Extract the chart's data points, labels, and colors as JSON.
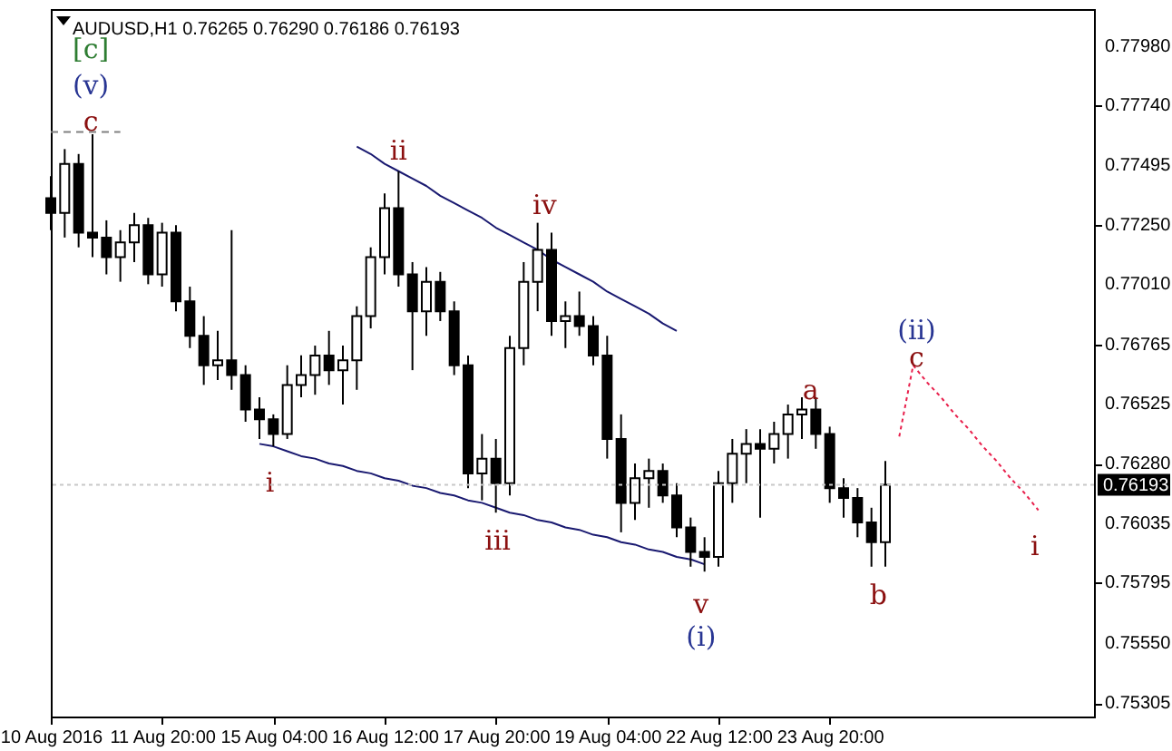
{
  "chart_data": {
    "type": "candlestick",
    "title": "AUDUSD,H1  0.76265 0.76290 0.76186 0.76193",
    "color": "#000000",
    "categories": [
      "10 Aug 2016",
      null,
      null,
      null,
      null,
      null,
      null,
      null,
      "11 Aug 20:00",
      null,
      null,
      null,
      null,
      null,
      null,
      null,
      "15 Aug 04:00",
      null,
      null,
      null,
      null,
      null,
      null,
      null,
      "16 Aug 12:00",
      null,
      null,
      null,
      null,
      null,
      null,
      null,
      "17 Aug 20:00",
      null,
      null,
      null,
      null,
      null,
      null,
      null,
      "19 Aug 04:00",
      null,
      null,
      null,
      null,
      null,
      null,
      null,
      "22 Aug 12:00",
      null,
      null,
      null,
      null,
      null,
      null,
      null,
      "23 Aug 20:00",
      null,
      null,
      null,
      null,
      null,
      null,
      null,
      null,
      null,
      null,
      null,
      null,
      null,
      null,
      null,
      null,
      null,
      null,
      null
    ],
    "ohlc": [
      [
        0.7736,
        0.7745,
        0.7723,
        0.773
      ],
      [
        0.773,
        0.7756,
        0.772,
        0.775
      ],
      [
        0.775,
        0.7754,
        0.7716,
        0.7722
      ],
      [
        0.7722,
        0.7762,
        0.7712,
        0.772
      ],
      [
        0.772,
        0.7727,
        0.7705,
        0.7712
      ],
      [
        0.7712,
        0.7723,
        0.7702,
        0.7718
      ],
      [
        0.7718,
        0.773,
        0.771,
        0.7725
      ],
      [
        0.7725,
        0.7728,
        0.7701,
        0.7705
      ],
      [
        0.7705,
        0.7726,
        0.77,
        0.7722
      ],
      [
        0.7722,
        0.7725,
        0.769,
        0.7694
      ],
      [
        0.7694,
        0.77,
        0.7675,
        0.768
      ],
      [
        0.768,
        0.7688,
        0.766,
        0.7668
      ],
      [
        0.7668,
        0.7682,
        0.7662,
        0.767
      ],
      [
        0.767,
        0.7723,
        0.7658,
        0.7664
      ],
      [
        0.7664,
        0.7668,
        0.7645,
        0.765
      ],
      [
        0.765,
        0.7655,
        0.7638,
        0.7646
      ],
      [
        0.7646,
        0.7648,
        0.7635,
        0.764
      ],
      [
        0.764,
        0.7668,
        0.7638,
        0.766
      ],
      [
        0.766,
        0.7672,
        0.7655,
        0.7664
      ],
      [
        0.7664,
        0.7676,
        0.7656,
        0.7672
      ],
      [
        0.7672,
        0.7682,
        0.766,
        0.7666
      ],
      [
        0.7666,
        0.7676,
        0.7652,
        0.767
      ],
      [
        0.767,
        0.7692,
        0.7658,
        0.7688
      ],
      [
        0.7688,
        0.7716,
        0.7683,
        0.7712
      ],
      [
        0.7712,
        0.7738,
        0.7705,
        0.7732
      ],
      [
        0.7732,
        0.7747,
        0.77,
        0.7705
      ],
      [
        0.7705,
        0.771,
        0.7666,
        0.769
      ],
      [
        0.769,
        0.7708,
        0.768,
        0.7702
      ],
      [
        0.7702,
        0.7706,
        0.7686,
        0.769
      ],
      [
        0.769,
        0.7694,
        0.7664,
        0.7668
      ],
      [
        0.7668,
        0.7672,
        0.7618,
        0.7624
      ],
      [
        0.7624,
        0.764,
        0.7613,
        0.763
      ],
      [
        0.763,
        0.7638,
        0.7608,
        0.762
      ],
      [
        0.762,
        0.768,
        0.7615,
        0.7675
      ],
      [
        0.7675,
        0.771,
        0.7668,
        0.7702
      ],
      [
        0.7702,
        0.7726,
        0.769,
        0.7715
      ],
      [
        0.7715,
        0.7722,
        0.768,
        0.7686
      ],
      [
        0.7686,
        0.7694,
        0.7675,
        0.7688
      ],
      [
        0.7688,
        0.7698,
        0.768,
        0.7684
      ],
      [
        0.7684,
        0.7688,
        0.7668,
        0.7672
      ],
      [
        0.7672,
        0.768,
        0.763,
        0.7638
      ],
      [
        0.7638,
        0.7648,
        0.76,
        0.7612
      ],
      [
        0.7612,
        0.7628,
        0.7605,
        0.7622
      ],
      [
        0.7622,
        0.763,
        0.761,
        0.7625
      ],
      [
        0.7625,
        0.7628,
        0.7612,
        0.7615
      ],
      [
        0.7615,
        0.762,
        0.7598,
        0.7602
      ],
      [
        0.7602,
        0.7606,
        0.7586,
        0.7592
      ],
      [
        0.7592,
        0.7598,
        0.7584,
        0.759
      ],
      [
        0.759,
        0.7625,
        0.7586,
        0.762
      ],
      [
        0.762,
        0.7638,
        0.7612,
        0.7632
      ],
      [
        0.7632,
        0.7642,
        0.762,
        0.7636
      ],
      [
        0.7636,
        0.7642,
        0.7606,
        0.7634
      ],
      [
        0.7634,
        0.7645,
        0.7628,
        0.764
      ],
      [
        0.764,
        0.7652,
        0.763,
        0.7648
      ],
      [
        0.7648,
        0.7655,
        0.7638,
        0.765
      ],
      [
        0.765,
        0.7655,
        0.7634,
        0.764
      ],
      [
        0.764,
        0.7643,
        0.7612,
        0.7618
      ],
      [
        0.7618,
        0.7622,
        0.7606,
        0.7614
      ],
      [
        0.7614,
        0.7618,
        0.7598,
        0.7604
      ],
      [
        0.7604,
        0.761,
        0.7586,
        0.7596
      ],
      [
        0.7596,
        0.7629,
        0.7586,
        0.76193
      ],
      null,
      null,
      null,
      null,
      null,
      null,
      null,
      null,
      null,
      null,
      null,
      null,
      null,
      null,
      null
    ],
    "series": [
      {
        "type": "line",
        "color": "#808080",
        "line_style": "dashed",
        "values": [
          0.7763,
          0.7763,
          0.7763,
          0.7763,
          0.7763,
          0.7763,
          null,
          null,
          null,
          null,
          null,
          null,
          null,
          null,
          null,
          null,
          null,
          null,
          null,
          null,
          null,
          null,
          null,
          null,
          null,
          null,
          null,
          null,
          null,
          null,
          null,
          null,
          null,
          null,
          null,
          null,
          null,
          null,
          null,
          null,
          null,
          null,
          null,
          null,
          null,
          null,
          null,
          null,
          null,
          null,
          null,
          null,
          null,
          null,
          null,
          null,
          null,
          null,
          null,
          null,
          null,
          null,
          null,
          null,
          null,
          null,
          null,
          null,
          null,
          null,
          null,
          null,
          null,
          null,
          null,
          null
        ]
      },
      {
        "type": "line",
        "color": "#191970",
        "line_style": "solid",
        "values": [
          null,
          null,
          null,
          null,
          null,
          null,
          null,
          null,
          null,
          null,
          null,
          null,
          null,
          null,
          null,
          null,
          null,
          null,
          null,
          null,
          null,
          null,
          0.7757,
          0.7754,
          0.775,
          0.7747,
          0.7744,
          0.7741,
          0.7737,
          0.7734,
          0.7731,
          0.7728,
          0.7724,
          0.7721,
          0.7718,
          0.7715,
          0.7711,
          0.7708,
          0.7705,
          0.7702,
          0.7698,
          0.7695,
          0.7692,
          0.7689,
          0.7685,
          0.7682,
          null,
          null,
          null,
          null,
          null,
          null,
          null,
          null,
          null,
          null,
          null,
          null,
          null,
          null,
          null,
          null,
          null,
          null,
          null,
          null,
          null,
          null,
          null,
          null,
          null,
          null,
          null,
          null,
          null,
          null
        ]
      },
      {
        "type": "line",
        "color": "#191970",
        "line_style": "solid",
        "values": [
          null,
          null,
          null,
          null,
          null,
          null,
          null,
          null,
          null,
          null,
          null,
          null,
          null,
          null,
          null,
          0.7636,
          0.7635,
          0.7633,
          0.7631,
          0.763,
          0.7628,
          0.7627,
          0.7625,
          0.7624,
          0.7622,
          0.7621,
          0.7619,
          0.7618,
          0.7616,
          0.7615,
          0.7613,
          0.7612,
          0.761,
          0.7608,
          0.7607,
          0.7605,
          0.7604,
          0.7602,
          0.7601,
          0.7599,
          0.7598,
          0.7596,
          0.7595,
          0.7593,
          0.7592,
          0.759,
          0.7589,
          0.7587,
          null,
          null,
          null,
          null,
          null,
          null,
          null,
          null,
          null,
          null,
          null,
          null,
          null,
          null,
          null,
          null,
          null,
          null,
          null,
          null,
          null,
          null,
          null,
          null,
          null,
          null,
          null,
          null
        ]
      },
      {
        "type": "line",
        "color": "#e8204c",
        "line_style": "dotted",
        "values": [
          null,
          null,
          null,
          null,
          null,
          null,
          null,
          null,
          null,
          null,
          null,
          null,
          null,
          null,
          null,
          null,
          null,
          null,
          null,
          null,
          null,
          null,
          null,
          null,
          null,
          null,
          null,
          null,
          null,
          null,
          null,
          null,
          null,
          null,
          null,
          null,
          null,
          null,
          null,
          null,
          null,
          null,
          null,
          null,
          null,
          null,
          null,
          null,
          null,
          null,
          null,
          null,
          null,
          null,
          null,
          null,
          null,
          null,
          null,
          null,
          null,
          0.7639,
          0.7668,
          0.7661,
          0.7655,
          0.7648,
          0.7642,
          0.7635,
          0.7629,
          0.7622,
          0.7616,
          0.7609,
          null,
          null,
          null,
          null
        ]
      }
    ],
    "annotations": [
      "[c]",
      "(v)",
      "c",
      "ii",
      "iv",
      "i",
      "iii",
      "v",
      "(i)",
      "a",
      "b",
      "(ii)",
      "c",
      "i"
    ],
    "ref_lines": [
      {
        "axis": "y",
        "value": 0.76193,
        "label": "0.76193"
      }
    ],
    "ylim": [
      0.7525,
      0.7813
    ],
    "yticks": [
      {
        "value": 0.7798,
        "label": "0.77980"
      },
      {
        "value": 0.7774,
        "label": "0.77740"
      },
      {
        "value": 0.77495,
        "label": "0.77495"
      },
      {
        "value": 0.7725,
        "label": "0.77250"
      },
      {
        "value": 0.7701,
        "label": "0.77010"
      },
      {
        "value": 0.76765,
        "label": "0.76765"
      },
      {
        "value": 0.76525,
        "label": "0.76525"
      },
      {
        "value": 0.7628,
        "label": "0.76280"
      },
      {
        "value": 0.76035,
        "label": "0.76035"
      },
      {
        "value": 0.75795,
        "label": "0.75795"
      },
      {
        "value": 0.7555,
        "label": "0.75550"
      },
      {
        "value": 0.75305,
        "label": "0.75305"
      }
    ]
  }
}
